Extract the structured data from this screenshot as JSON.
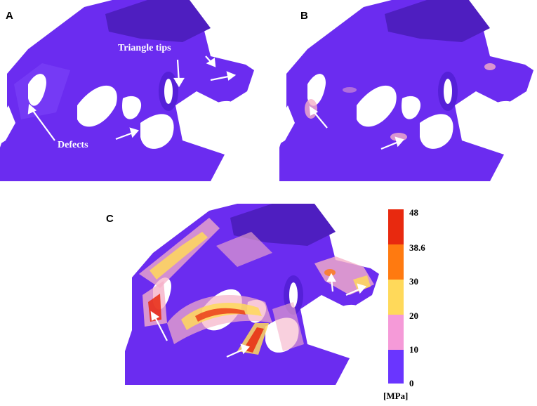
{
  "panels": {
    "a": {
      "label": "A",
      "annotation_tips": "Triangle tips",
      "annotation_defects": "Defects"
    },
    "b": {
      "label": "B"
    },
    "c": {
      "label": "C"
    }
  },
  "colorbar": {
    "unit": "[MPa]",
    "ticks": [
      "48",
      "38.6",
      "30",
      "20",
      "10",
      "0"
    ],
    "colors": [
      "#e8290f",
      "#ff7a10",
      "#ffd95a",
      "#f59ad8",
      "#6a35ff"
    ]
  },
  "colors": {
    "structure": "#6b2cf0",
    "structure_dark": "#4e1ec0",
    "structure_light": "#8a55ff",
    "pore": "#ffffff"
  }
}
